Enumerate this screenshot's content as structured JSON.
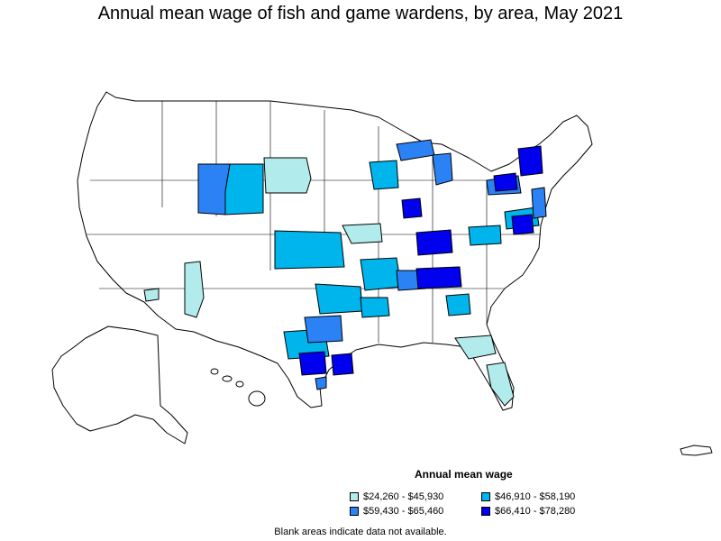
{
  "title": "Annual mean wage of fish and game wardens, by area, May 2021",
  "legend": {
    "title": "Annual mean wage",
    "items": [
      {
        "label": "$24,260 - $45,930",
        "color": "#b2ebeb"
      },
      {
        "label": "$46,910 - $58,190",
        "color": "#00b4ec"
      },
      {
        "label": "$59,430 - $65,460",
        "color": "#2b82f4"
      },
      {
        "label": "$66,410 - $78,280",
        "color": "#0000ee"
      }
    ]
  },
  "note": "Blank areas indicate data not available.",
  "colors": {
    "outline": "#000000",
    "no_data": "#ffffff"
  }
}
